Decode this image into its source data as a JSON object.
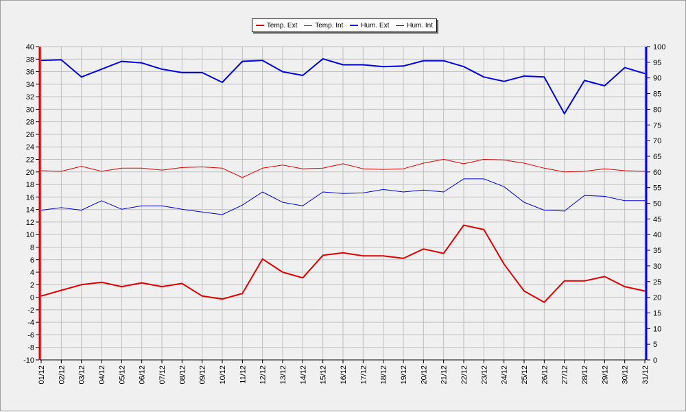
{
  "chart_data": {
    "type": "line",
    "categories": [
      "01/12",
      "02/12",
      "03/12",
      "04/12",
      "05/12",
      "06/12",
      "07/12",
      "08/12",
      "09/12",
      "10/12",
      "11/12",
      "12/12",
      "13/12",
      "14/12",
      "15/12",
      "16/12",
      "17/12",
      "18/12",
      "19/12",
      "20/12",
      "21/12",
      "22/12",
      "23/12",
      "24/12",
      "25/12",
      "26/12",
      "27/12",
      "28/12",
      "29/12",
      "30/12",
      "31/12"
    ],
    "y_left": {
      "min": -10,
      "max": 40,
      "step": 2
    },
    "y_right": {
      "min": 0,
      "max": 100,
      "step": 5
    },
    "grid": true,
    "legend_position": "top-center",
    "series": [
      {
        "name": "Temp. Ext",
        "axis": "left",
        "color": "#e00000",
        "weight": "thick",
        "values": [
          0.2,
          1.1,
          2.0,
          2.4,
          1.7,
          2.3,
          1.7,
          2.2,
          0.2,
          -0.3,
          0.6,
          6.1,
          4.0,
          3.1,
          6.7,
          7.1,
          6.6,
          6.6,
          6.2,
          7.7,
          7.0,
          11.5,
          10.8,
          5.3,
          1.0,
          -0.8,
          2.6,
          2.6,
          3.3,
          1.7,
          1.0
        ]
      },
      {
        "name": "Temp. Int",
        "axis": "left",
        "color": "#e00000",
        "weight": "thin",
        "values": [
          20.2,
          20.1,
          20.9,
          20.1,
          20.6,
          20.6,
          20.3,
          20.7,
          20.8,
          20.6,
          19.1,
          20.6,
          21.1,
          20.5,
          20.6,
          21.3,
          20.5,
          20.4,
          20.5,
          21.4,
          22.0,
          21.3,
          22.0,
          21.9,
          21.4,
          20.6,
          20.0,
          20.1,
          20.5,
          20.2,
          20.1
        ]
      },
      {
        "name": "Hum. Ext",
        "axis": "right",
        "color": "#0000e0",
        "weight": "thick",
        "values": [
          95.6,
          95.8,
          90.3,
          92.8,
          95.3,
          94.8,
          92.8,
          91.7,
          91.7,
          88.6,
          95.3,
          95.6,
          92.0,
          90.8,
          96.1,
          94.2,
          94.2,
          93.6,
          93.8,
          95.5,
          95.5,
          93.6,
          90.3,
          88.9,
          90.6,
          90.3,
          78.6,
          89.2,
          87.5,
          93.3,
          91.4
        ]
      },
      {
        "name": "Hum. Int",
        "axis": "right",
        "color": "#0000e0",
        "weight": "thin",
        "values": [
          47.8,
          48.6,
          47.8,
          50.8,
          48.1,
          49.2,
          49.2,
          48.1,
          47.2,
          46.4,
          49.4,
          53.6,
          50.3,
          49.2,
          53.6,
          53.1,
          53.3,
          54.4,
          53.6,
          54.2,
          53.6,
          57.8,
          57.8,
          55.3,
          50.3,
          47.8,
          47.5,
          52.5,
          52.2,
          50.8,
          50.8
        ]
      }
    ]
  }
}
